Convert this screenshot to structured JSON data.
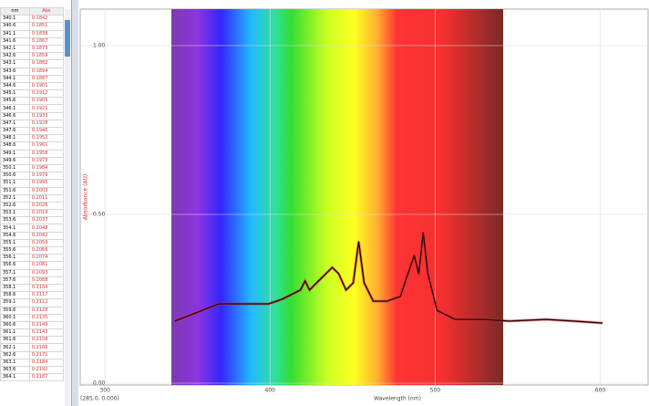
{
  "table": {
    "columns": [
      "nm",
      "Abs"
    ],
    "rows": [
      [
        "340.1",
        "0.1842"
      ],
      [
        "340.6",
        "0.1851"
      ],
      [
        "341.1",
        "0.1838"
      ],
      [
        "341.6",
        "0.1867"
      ],
      [
        "342.1",
        "0.1873"
      ],
      [
        "342.6",
        "0.1859"
      ],
      [
        "343.1",
        "0.1882"
      ],
      [
        "343.6",
        "0.1894"
      ],
      [
        "344.1",
        "0.1887"
      ],
      [
        "344.6",
        "0.1901"
      ],
      [
        "345.1",
        "0.1912"
      ],
      [
        "345.6",
        "0.1905"
      ],
      [
        "346.1",
        "0.1921"
      ],
      [
        "346.6",
        "0.1933"
      ],
      [
        "347.1",
        "0.1928"
      ],
      [
        "347.6",
        "0.1946"
      ],
      [
        "348.1",
        "0.1952"
      ],
      [
        "348.6",
        "0.1961"
      ],
      [
        "349.1",
        "0.1958"
      ],
      [
        "349.6",
        "0.1973"
      ],
      [
        "350.1",
        "0.1984"
      ],
      [
        "350.6",
        "0.1979"
      ],
      [
        "351.1",
        "0.1995"
      ],
      [
        "351.6",
        "0.2003"
      ],
      [
        "352.1",
        "0.2011"
      ],
      [
        "352.6",
        "0.2026"
      ],
      [
        "353.1",
        "0.2019"
      ],
      [
        "353.6",
        "0.2037"
      ],
      [
        "354.1",
        "0.2048"
      ],
      [
        "354.6",
        "0.2042"
      ],
      [
        "355.1",
        "0.2059"
      ],
      [
        "355.6",
        "0.2066"
      ],
      [
        "356.1",
        "0.2074"
      ],
      [
        "356.6",
        "0.2081"
      ],
      [
        "357.1",
        "0.2093"
      ],
      [
        "357.6",
        "0.2088"
      ],
      [
        "358.1",
        "0.2104"
      ],
      [
        "358.6",
        "0.2117"
      ],
      [
        "359.1",
        "0.2112"
      ],
      [
        "359.6",
        "0.2128"
      ],
      [
        "360.1",
        "0.2135"
      ],
      [
        "360.6",
        "0.2149"
      ],
      [
        "361.1",
        "0.2143"
      ],
      [
        "361.6",
        "0.2158"
      ],
      [
        "362.1",
        "0.2166"
      ],
      [
        "362.6",
        "0.2171"
      ],
      [
        "363.1",
        "0.2184"
      ],
      [
        "363.6",
        "0.2192"
      ],
      [
        "364.1",
        "0.2187"
      ]
    ]
  },
  "chart_data": {
    "type": "line",
    "x_label": "Wavelength (nm)",
    "y_label": "Absorbance (AU)",
    "cursor_readout": "(285.0, 0.000)",
    "x": [
      342.3,
      352.3,
      368.8,
      385.3,
      399.1,
      407.4,
      418.4,
      421.2,
      423.9,
      429.4,
      437.7,
      441.6,
      446.0,
      450.4,
      453.7,
      457.0,
      462.5,
      470.8,
      479.0,
      483.5,
      487.3,
      490.1,
      492.8,
      495.6,
      501.1,
      512.1,
      528.7,
      545.2,
      567.2,
      583.8,
      601.4
    ],
    "series": [
      {
        "name": "Abs",
        "color": "#2a0808",
        "values": [
          0.184,
          0.203,
          0.235,
          0.235,
          0.235,
          0.249,
          0.276,
          0.303,
          0.276,
          0.303,
          0.343,
          0.324,
          0.276,
          0.297,
          0.419,
          0.297,
          0.243,
          0.243,
          0.257,
          0.324,
          0.378,
          0.324,
          0.446,
          0.324,
          0.216,
          0.189,
          0.189,
          0.184,
          0.189,
          0.184,
          0.178
        ]
      }
    ],
    "xlim": [
      285,
      629
    ],
    "xticks": [
      300,
      400,
      500,
      600
    ],
    "ylim": [
      0,
      1.1
    ],
    "yticks": [
      {
        "value": 0,
        "label": "0.00"
      },
      {
        "value": 0.5,
        "label": "0.50"
      },
      {
        "value": 1,
        "label": "1.00"
      }
    ],
    "grid": true
  }
}
